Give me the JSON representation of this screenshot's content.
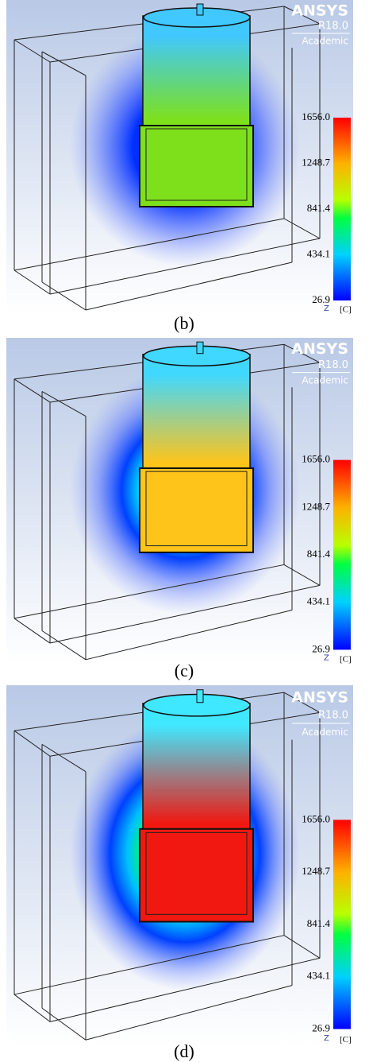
{
  "panels": [
    {
      "brand": "ANSYS",
      "version": "R18.0",
      "edition": "Academic",
      "colorbar_ticks": [
        "1656.0",
        "1248.7",
        "841.4",
        "434.1",
        "26.9"
      ],
      "unit": "[C]",
      "axis": "Z",
      "caption": "(b)"
    },
    {
      "brand": "ANSYS",
      "version": "R18.0",
      "edition": "Academic",
      "colorbar_ticks": [
        "1656.0",
        "1248.7",
        "841.4",
        "434.1",
        "26.9"
      ],
      "unit": "[C]",
      "axis": "Z",
      "caption": "(c)"
    },
    {
      "brand": "ANSYS",
      "version": "R18.0",
      "edition": "Academic",
      "colorbar_ticks": [
        "1656.0",
        "1248.7",
        "841.4",
        "434.1",
        "26.9"
      ],
      "unit": "[C]",
      "axis": "Z",
      "caption": "(d)"
    }
  ]
}
